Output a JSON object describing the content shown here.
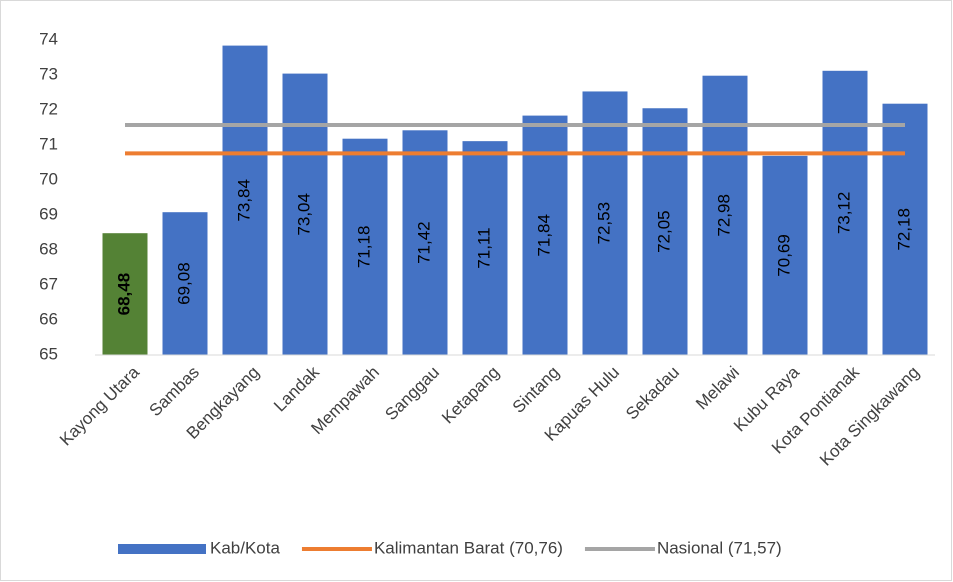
{
  "chart_data": {
    "type": "bar",
    "categories": [
      "Kayong Utara",
      "Sambas",
      "Bengkayang",
      "Landak",
      "Mempawah",
      "Sanggau",
      "Ketapang",
      "Sintang",
      "Kapuas Hulu",
      "Sekadau",
      "Melawi",
      "Kubu Raya",
      "Kota Pontianak",
      "Kota Singkawang"
    ],
    "series": [
      {
        "name": "Kab/Kota",
        "color": "#4472c4",
        "bar_colors": [
          "#548235",
          "#4472c4",
          "#4472c4",
          "#4472c4",
          "#4472c4",
          "#4472c4",
          "#4472c4",
          "#4472c4",
          "#4472c4",
          "#4472c4",
          "#4472c4",
          "#4472c4",
          "#4472c4",
          "#4472c4"
        ],
        "values": [
          68.48,
          69.08,
          73.84,
          73.04,
          71.18,
          71.42,
          71.11,
          71.84,
          72.53,
          72.05,
          72.98,
          70.69,
          73.12,
          72.18
        ],
        "value_labels": [
          "68,48",
          "69,08",
          "73,84",
          "73,04",
          "71,18",
          "71,42",
          "71,11",
          "71,84",
          "72,53",
          "72,05",
          "72,98",
          "70,69",
          "73,12",
          "72,18"
        ]
      }
    ],
    "reference_lines": [
      {
        "name": "Kalimantan Barat (70,76)",
        "value": 70.76,
        "color": "#ed7d31"
      },
      {
        "name": "Nasional (71,57)",
        "value": 71.57,
        "color": "#a5a5a5"
      }
    ],
    "ylim": [
      65,
      74
    ],
    "yticks": [
      65,
      66,
      67,
      68,
      69,
      70,
      71,
      72,
      73,
      74
    ],
    "grid": false,
    "legend": "bottom"
  }
}
